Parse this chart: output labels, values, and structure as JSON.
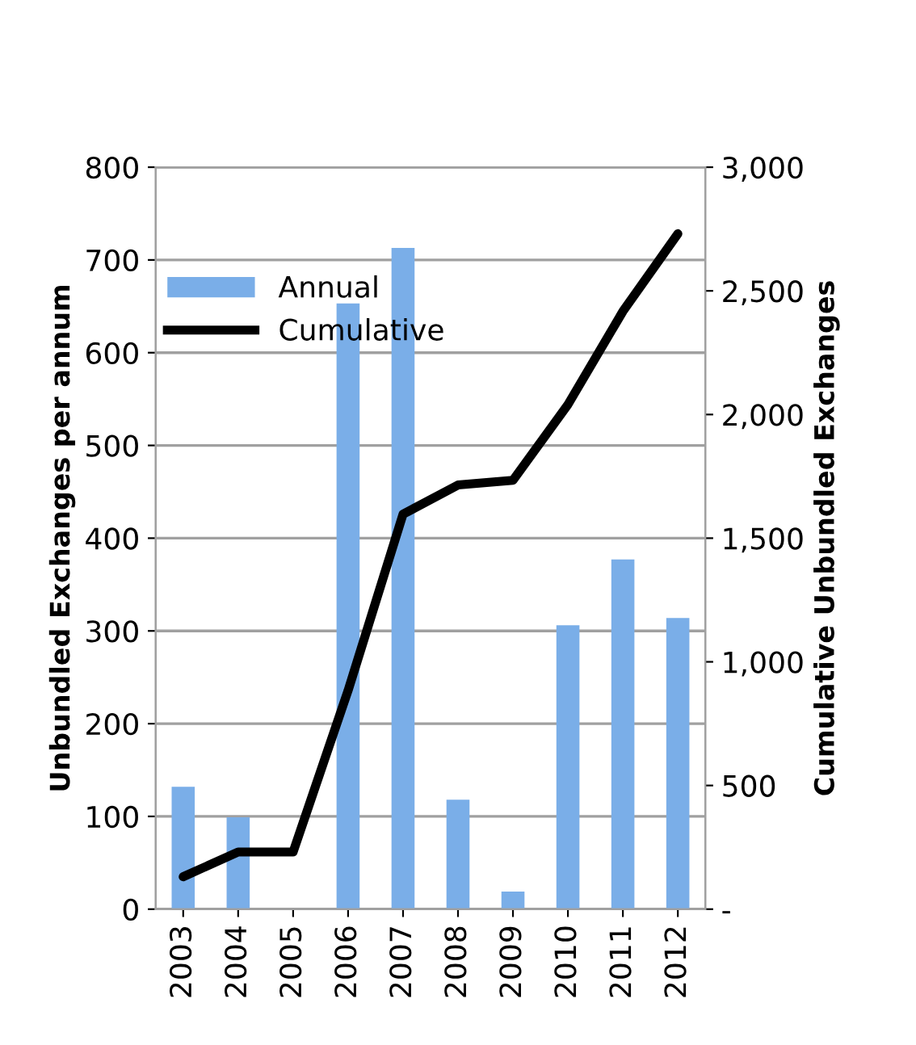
{
  "chart_data": {
    "type": "bar",
    "categories": [
      "2003",
      "2004",
      "2005",
      "2006",
      "2007",
      "2008",
      "2009",
      "2010",
      "2011",
      "2012"
    ],
    "series": [
      {
        "name": "Annual",
        "color": "#7aaee8",
        "values": [
          132,
          99,
          0,
          653,
          713,
          118,
          19,
          306,
          377,
          314
        ]
      },
      {
        "name": "Cumulative",
        "type": "line",
        "axis": "y2",
        "color": "#000000",
        "values": [
          131,
          231,
          231,
          884,
          1597,
          1715,
          1734,
          2040,
          2417,
          2731
        ]
      }
    ],
    "ylabel": "Unbundled Exchanges per annum",
    "y2label": "Cumulative Unbundled Exchanges",
    "ylim": [
      0,
      800
    ],
    "yticks": [
      0,
      100,
      200,
      300,
      400,
      500,
      600,
      700,
      800
    ],
    "y2lim": [
      0,
      3000
    ],
    "y2ticks": [
      {
        "value": 0,
        "label": "-"
      },
      {
        "value": 500,
        "label": "500"
      },
      {
        "value": 1000,
        "label": "1,000"
      },
      {
        "value": 1500,
        "label": "1,500"
      },
      {
        "value": 2000,
        "label": "2,000"
      },
      {
        "value": 2500,
        "label": "2,500"
      },
      {
        "value": 3000,
        "label": "3,000"
      }
    ],
    "grid": "y",
    "legend": "top left",
    "marker": "none",
    "line_style": "solid"
  }
}
